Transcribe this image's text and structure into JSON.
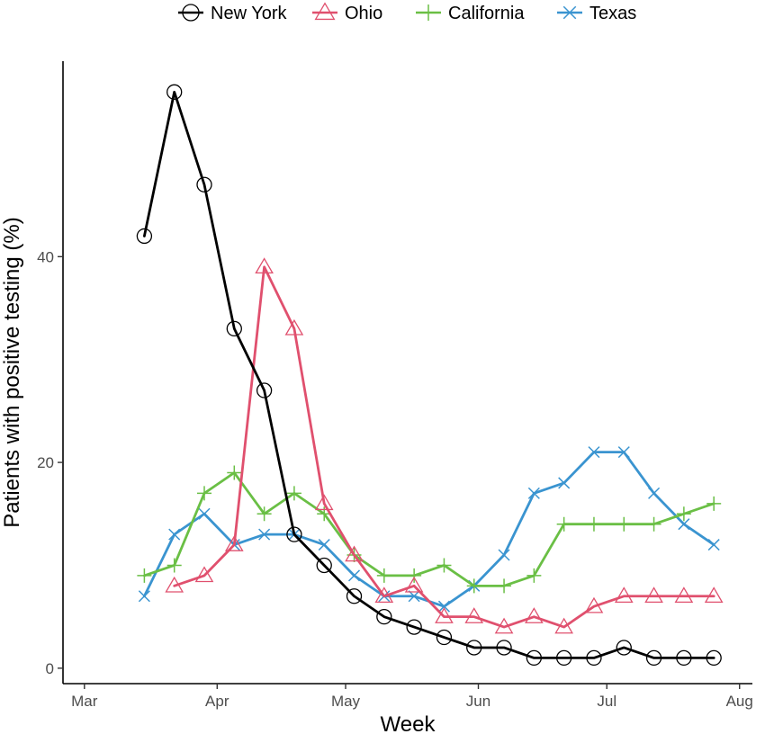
{
  "chart_data": {
    "type": "line",
    "title": "",
    "xlabel": "Week",
    "ylabel": "Patients with positive testing (%)",
    "x_ticks": [
      {
        "label": "Mar",
        "date": "2020-03-01"
      },
      {
        "label": "Apr",
        "date": "2020-04-01"
      },
      {
        "label": "May",
        "date": "2020-05-01"
      },
      {
        "label": "Jun",
        "date": "2020-06-01"
      },
      {
        "label": "Jul",
        "date": "2020-07-01"
      },
      {
        "label": "Aug",
        "date": "2020-08-01"
      }
    ],
    "y_ticks": [
      0,
      20,
      40
    ],
    "xlim": [
      "2020-02-25",
      "2020-08-04"
    ],
    "ylim": [
      -1.5,
      59
    ],
    "grid": false,
    "legend_position": "top",
    "series": [
      {
        "name": "New York",
        "color": "#000000",
        "marker": "circle",
        "points": [
          {
            "x": "2020-03-15",
            "y": 42
          },
          {
            "x": "2020-03-22",
            "y": 56
          },
          {
            "x": "2020-03-29",
            "y": 47
          },
          {
            "x": "2020-04-05",
            "y": 33
          },
          {
            "x": "2020-04-12",
            "y": 27
          },
          {
            "x": "2020-04-19",
            "y": 13
          },
          {
            "x": "2020-04-26",
            "y": 10
          },
          {
            "x": "2020-05-03",
            "y": 7
          },
          {
            "x": "2020-05-10",
            "y": 5
          },
          {
            "x": "2020-05-17",
            "y": 4
          },
          {
            "x": "2020-05-24",
            "y": 3
          },
          {
            "x": "2020-05-31",
            "y": 2
          },
          {
            "x": "2020-06-07",
            "y": 2
          },
          {
            "x": "2020-06-14",
            "y": 1
          },
          {
            "x": "2020-06-21",
            "y": 1
          },
          {
            "x": "2020-06-28",
            "y": 1
          },
          {
            "x": "2020-07-05",
            "y": 2
          },
          {
            "x": "2020-07-12",
            "y": 1
          },
          {
            "x": "2020-07-19",
            "y": 1
          },
          {
            "x": "2020-07-26",
            "y": 1
          }
        ]
      },
      {
        "name": "Ohio",
        "color": "#e0506e",
        "marker": "triangle",
        "points": [
          {
            "x": "2020-03-22",
            "y": 8
          },
          {
            "x": "2020-03-29",
            "y": 9
          },
          {
            "x": "2020-04-05",
            "y": 12
          },
          {
            "x": "2020-04-12",
            "y": 39
          },
          {
            "x": "2020-04-19",
            "y": 33
          },
          {
            "x": "2020-04-26",
            "y": 16
          },
          {
            "x": "2020-05-03",
            "y": 11
          },
          {
            "x": "2020-05-10",
            "y": 7
          },
          {
            "x": "2020-05-17",
            "y": 8
          },
          {
            "x": "2020-05-24",
            "y": 5
          },
          {
            "x": "2020-05-31",
            "y": 5
          },
          {
            "x": "2020-06-07",
            "y": 4
          },
          {
            "x": "2020-06-14",
            "y": 5
          },
          {
            "x": "2020-06-21",
            "y": 4
          },
          {
            "x": "2020-06-28",
            "y": 6
          },
          {
            "x": "2020-07-05",
            "y": 7
          },
          {
            "x": "2020-07-12",
            "y": 7
          },
          {
            "x": "2020-07-19",
            "y": 7
          },
          {
            "x": "2020-07-26",
            "y": 7
          }
        ]
      },
      {
        "name": "California",
        "color": "#6abf45",
        "marker": "plus",
        "points": [
          {
            "x": "2020-03-15",
            "y": 9
          },
          {
            "x": "2020-03-22",
            "y": 10
          },
          {
            "x": "2020-03-29",
            "y": 17
          },
          {
            "x": "2020-04-05",
            "y": 19
          },
          {
            "x": "2020-04-12",
            "y": 15
          },
          {
            "x": "2020-04-19",
            "y": 17
          },
          {
            "x": "2020-04-26",
            "y": 15
          },
          {
            "x": "2020-05-03",
            "y": 11
          },
          {
            "x": "2020-05-10",
            "y": 9
          },
          {
            "x": "2020-05-17",
            "y": 9
          },
          {
            "x": "2020-05-24",
            "y": 10
          },
          {
            "x": "2020-05-31",
            "y": 8
          },
          {
            "x": "2020-06-07",
            "y": 8
          },
          {
            "x": "2020-06-14",
            "y": 9
          },
          {
            "x": "2020-06-21",
            "y": 14
          },
          {
            "x": "2020-06-28",
            "y": 14
          },
          {
            "x": "2020-07-05",
            "y": 14
          },
          {
            "x": "2020-07-12",
            "y": 14
          },
          {
            "x": "2020-07-19",
            "y": 15
          },
          {
            "x": "2020-07-26",
            "y": 16
          }
        ]
      },
      {
        "name": "Texas",
        "color": "#3a94d0",
        "marker": "x",
        "points": [
          {
            "x": "2020-03-15",
            "y": 7
          },
          {
            "x": "2020-03-22",
            "y": 13
          },
          {
            "x": "2020-03-29",
            "y": 15
          },
          {
            "x": "2020-04-05",
            "y": 12
          },
          {
            "x": "2020-04-12",
            "y": 13
          },
          {
            "x": "2020-04-19",
            "y": 13
          },
          {
            "x": "2020-04-26",
            "y": 12
          },
          {
            "x": "2020-05-03",
            "y": 9
          },
          {
            "x": "2020-05-10",
            "y": 7
          },
          {
            "x": "2020-05-17",
            "y": 7
          },
          {
            "x": "2020-05-24",
            "y": 6
          },
          {
            "x": "2020-05-31",
            "y": 8
          },
          {
            "x": "2020-06-07",
            "y": 11
          },
          {
            "x": "2020-06-14",
            "y": 17
          },
          {
            "x": "2020-06-21",
            "y": 18
          },
          {
            "x": "2020-06-28",
            "y": 21
          },
          {
            "x": "2020-07-05",
            "y": 21
          },
          {
            "x": "2020-07-12",
            "y": 17
          },
          {
            "x": "2020-07-19",
            "y": 14
          },
          {
            "x": "2020-07-26",
            "y": 12
          }
        ]
      }
    ]
  }
}
